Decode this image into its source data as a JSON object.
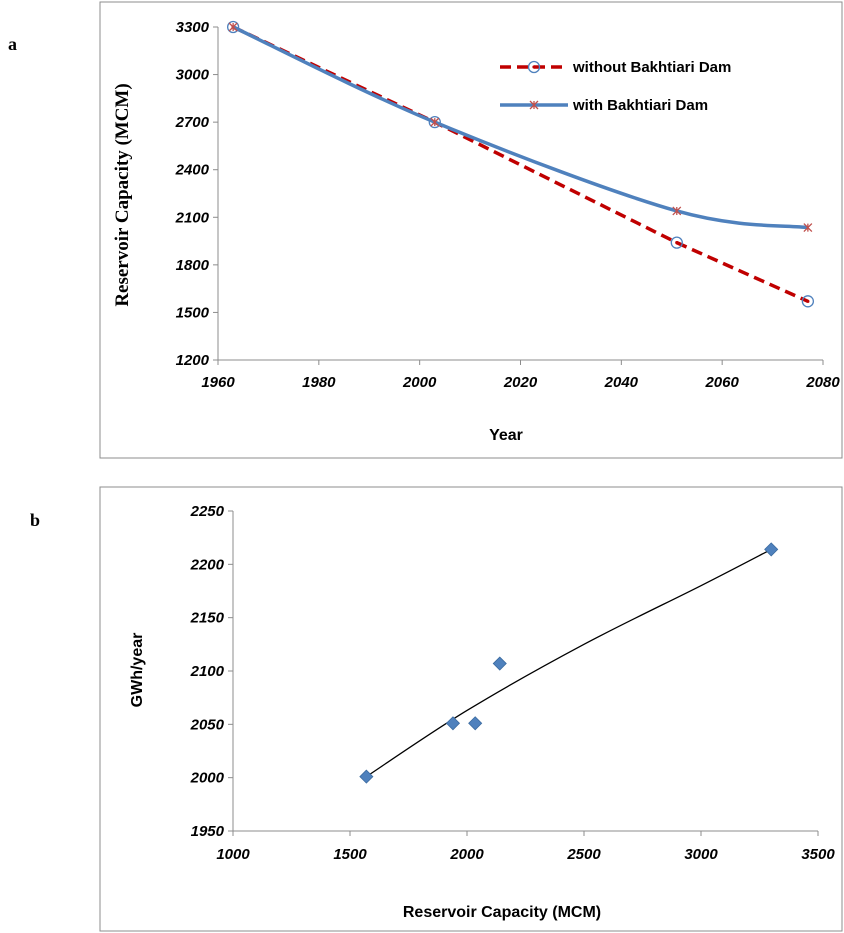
{
  "chart_data": [
    {
      "panel": "a",
      "type": "line",
      "xlabel": "Year",
      "ylabel": "Reservoir Capacity (MCM)",
      "xlim": [
        1960,
        2080
      ],
      "ylim": [
        1200,
        3300
      ],
      "xticks": [
        1960,
        1980,
        2000,
        2020,
        2040,
        2060,
        2080
      ],
      "yticks": [
        1200,
        1500,
        1800,
        2100,
        2400,
        2700,
        3000,
        3300
      ],
      "grid": false,
      "legend": "top-right",
      "series": [
        {
          "name": "without Bakhtiari Dam",
          "style": "dashed",
          "marker": "circle",
          "color": "#c00000",
          "x": [
            1963,
            2003,
            2051,
            2077
          ],
          "y": [
            3300,
            2700,
            1940,
            1570
          ]
        },
        {
          "name": "with Bakhtiari Dam",
          "style": "solid",
          "marker": "star",
          "color": "#4f81bd",
          "x": [
            1963,
            2003,
            2051,
            2077
          ],
          "y": [
            3300,
            2700,
            2140,
            2035
          ]
        }
      ]
    },
    {
      "panel": "b",
      "type": "scatter",
      "xlabel": "Reservoir Capacity (MCM)",
      "ylabel": "GWh/year",
      "xlim": [
        1000,
        3500
      ],
      "ylim": [
        1950,
        2250
      ],
      "xticks": [
        1000,
        1500,
        2000,
        2500,
        3000,
        3500
      ],
      "yticks": [
        1950,
        2000,
        2050,
        2100,
        2150,
        2200,
        2250
      ],
      "grid": false,
      "marker": "diamond",
      "color": "#4f81bd",
      "points": [
        {
          "x": 1570,
          "y": 2001
        },
        {
          "x": 1940,
          "y": 2051
        },
        {
          "x": 2035,
          "y": 2051
        },
        {
          "x": 2140,
          "y": 2107
        },
        {
          "x": 3300,
          "y": 2214
        }
      ],
      "trendline": {
        "type": "smooth",
        "x": [
          1570,
          2000,
          2500,
          3000,
          3300
        ],
        "y": [
          2001,
          2063,
          2125,
          2180,
          2214
        ]
      }
    }
  ]
}
